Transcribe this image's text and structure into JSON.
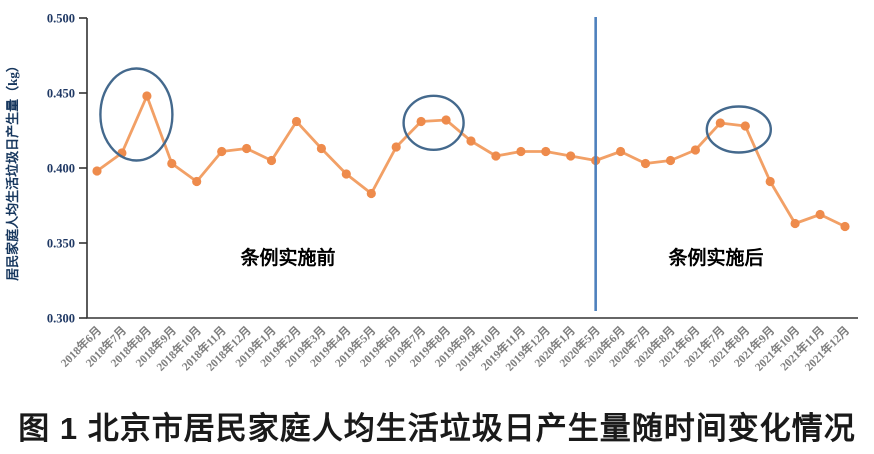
{
  "caption": "图 1  北京市居民家庭人均生活垃圾日产生量随时间变化情况",
  "chart_data": {
    "type": "line",
    "ylabel": "居民家庭人均生活垃圾日产生量（kg）",
    "xlabel": "",
    "ylim": [
      0.3,
      0.5
    ],
    "grid": false,
    "legend": "none",
    "y_ticks": [
      0.5,
      0.45,
      0.4,
      0.35,
      0.3
    ],
    "y_tick_labels": [
      "0.500",
      "0.450",
      "0.400",
      "0.350",
      "0.300"
    ],
    "categories": [
      "2018年6月",
      "2018年7月",
      "2018年8月",
      "2018年9月",
      "2018年10月",
      "2018年11月",
      "2018年12月",
      "2019年1月",
      "2019年2月",
      "2019年3月",
      "2019年4月",
      "2019年5月",
      "2019年6月",
      "2019年7月",
      "2019年8月",
      "2019年9月",
      "2019年10月",
      "2019年11月",
      "2019年12月",
      "2020年1月",
      "2020年5月",
      "2020年6月",
      "2020年7月",
      "2020年8月",
      "2021年6月",
      "2021年7月",
      "2021年8月",
      "2021年9月",
      "2021年10月",
      "2021年11月",
      "2021年12月"
    ],
    "values": [
      0.398,
      0.41,
      0.448,
      0.403,
      0.391,
      0.411,
      0.413,
      0.405,
      0.431,
      0.413,
      0.396,
      0.383,
      0.414,
      0.431,
      0.432,
      0.418,
      0.408,
      0.411,
      0.411,
      0.408,
      0.405,
      0.411,
      0.403,
      0.405,
      0.412,
      0.43,
      0.428,
      0.391,
      0.363,
      0.369,
      0.361
    ],
    "annotations": {
      "phase_before_label": "条例实施前",
      "phase_after_label": "条例实施后",
      "divider_category": "2020年5月",
      "circles": [
        {
          "around": [
            "2018年7月",
            "2018年8月"
          ]
        },
        {
          "around": [
            "2019年7月",
            "2019年8月"
          ]
        },
        {
          "around": [
            "2021年7月",
            "2021年8月"
          ]
        }
      ]
    },
    "colors": {
      "series_line": "#f2a066",
      "series_marker": "#ee8b4c",
      "divider_line": "#4e81bd",
      "circle_stroke": "#44698d",
      "axis": "#333333",
      "y_tick_text": "#1f3864",
      "x_tick_text": "#7f7f7f",
      "y_axis_title_text": "#17375e",
      "annotation_text": "#000000"
    }
  }
}
